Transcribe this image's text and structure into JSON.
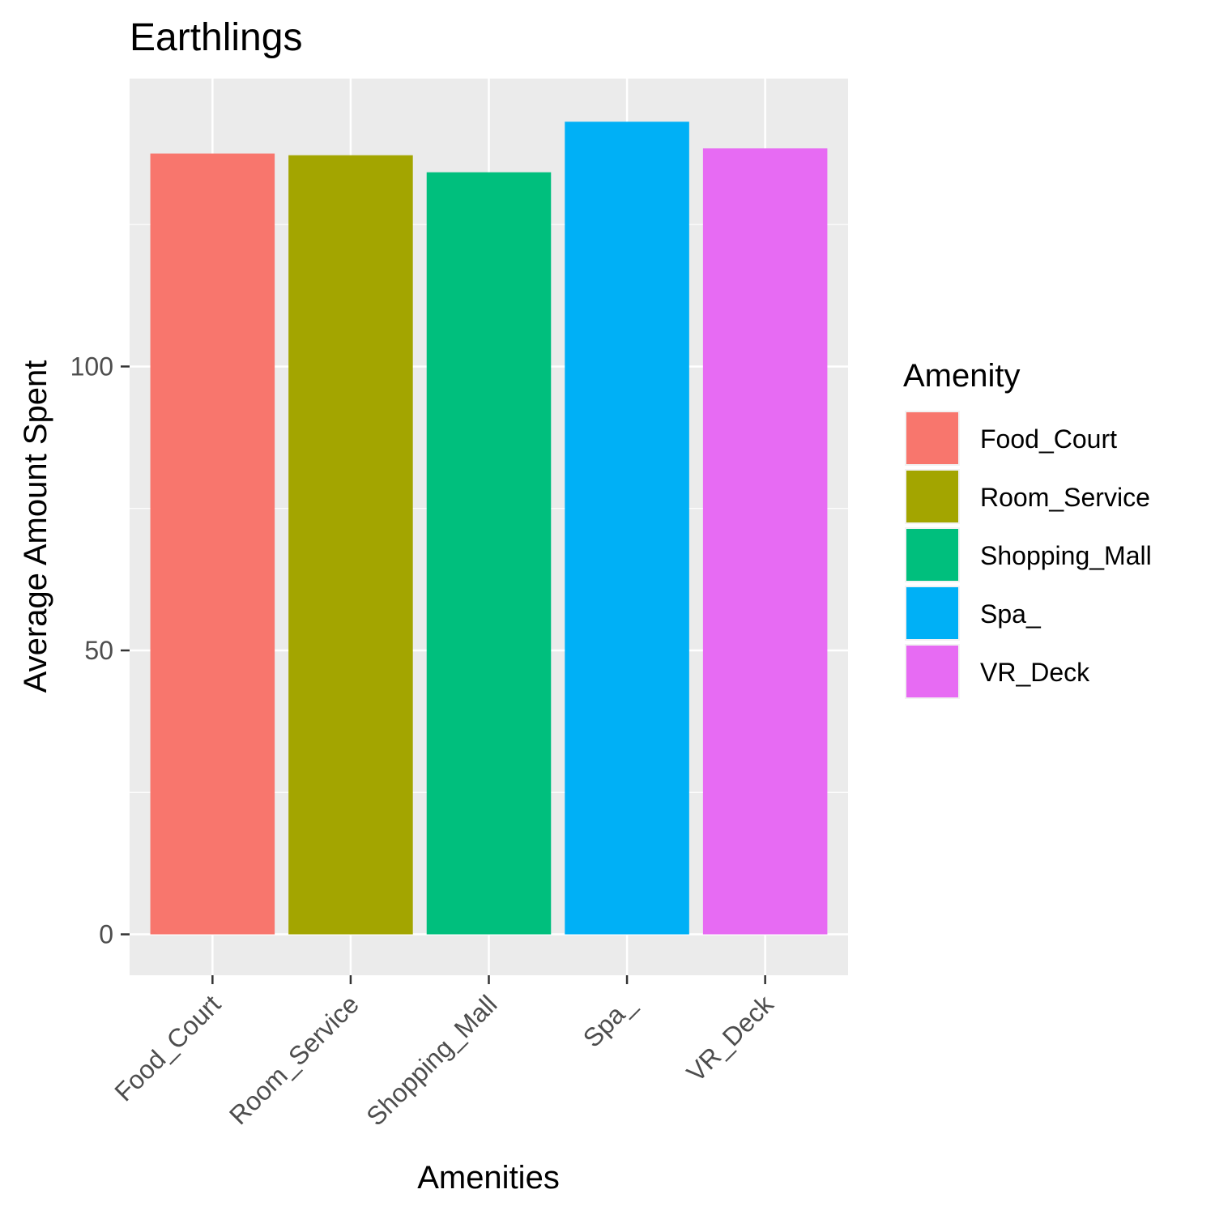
{
  "chart_data": {
    "type": "bar",
    "title": "Earthlings",
    "xlabel": "Amenities",
    "ylabel": "Average Amount Spent",
    "categories": [
      "Food_Court",
      "Room_Service",
      "Shopping_Mall",
      "Spa_",
      "VR_Deck"
    ],
    "values": [
      137.5,
      137.2,
      134.2,
      143.1,
      138.4
    ],
    "colors": [
      "#F8766D",
      "#A3A500",
      "#00BF7D",
      "#00B0F6",
      "#E76BF3"
    ],
    "ylim": [
      -7.2,
      150.7
    ],
    "yticks": [
      0,
      50,
      100
    ],
    "grid": true,
    "legend": {
      "title": "Amenity",
      "position": "right",
      "entries": [
        "Food_Court",
        "Room_Service",
        "Shopping_Mall",
        "Spa_",
        "VR_Deck"
      ]
    }
  }
}
